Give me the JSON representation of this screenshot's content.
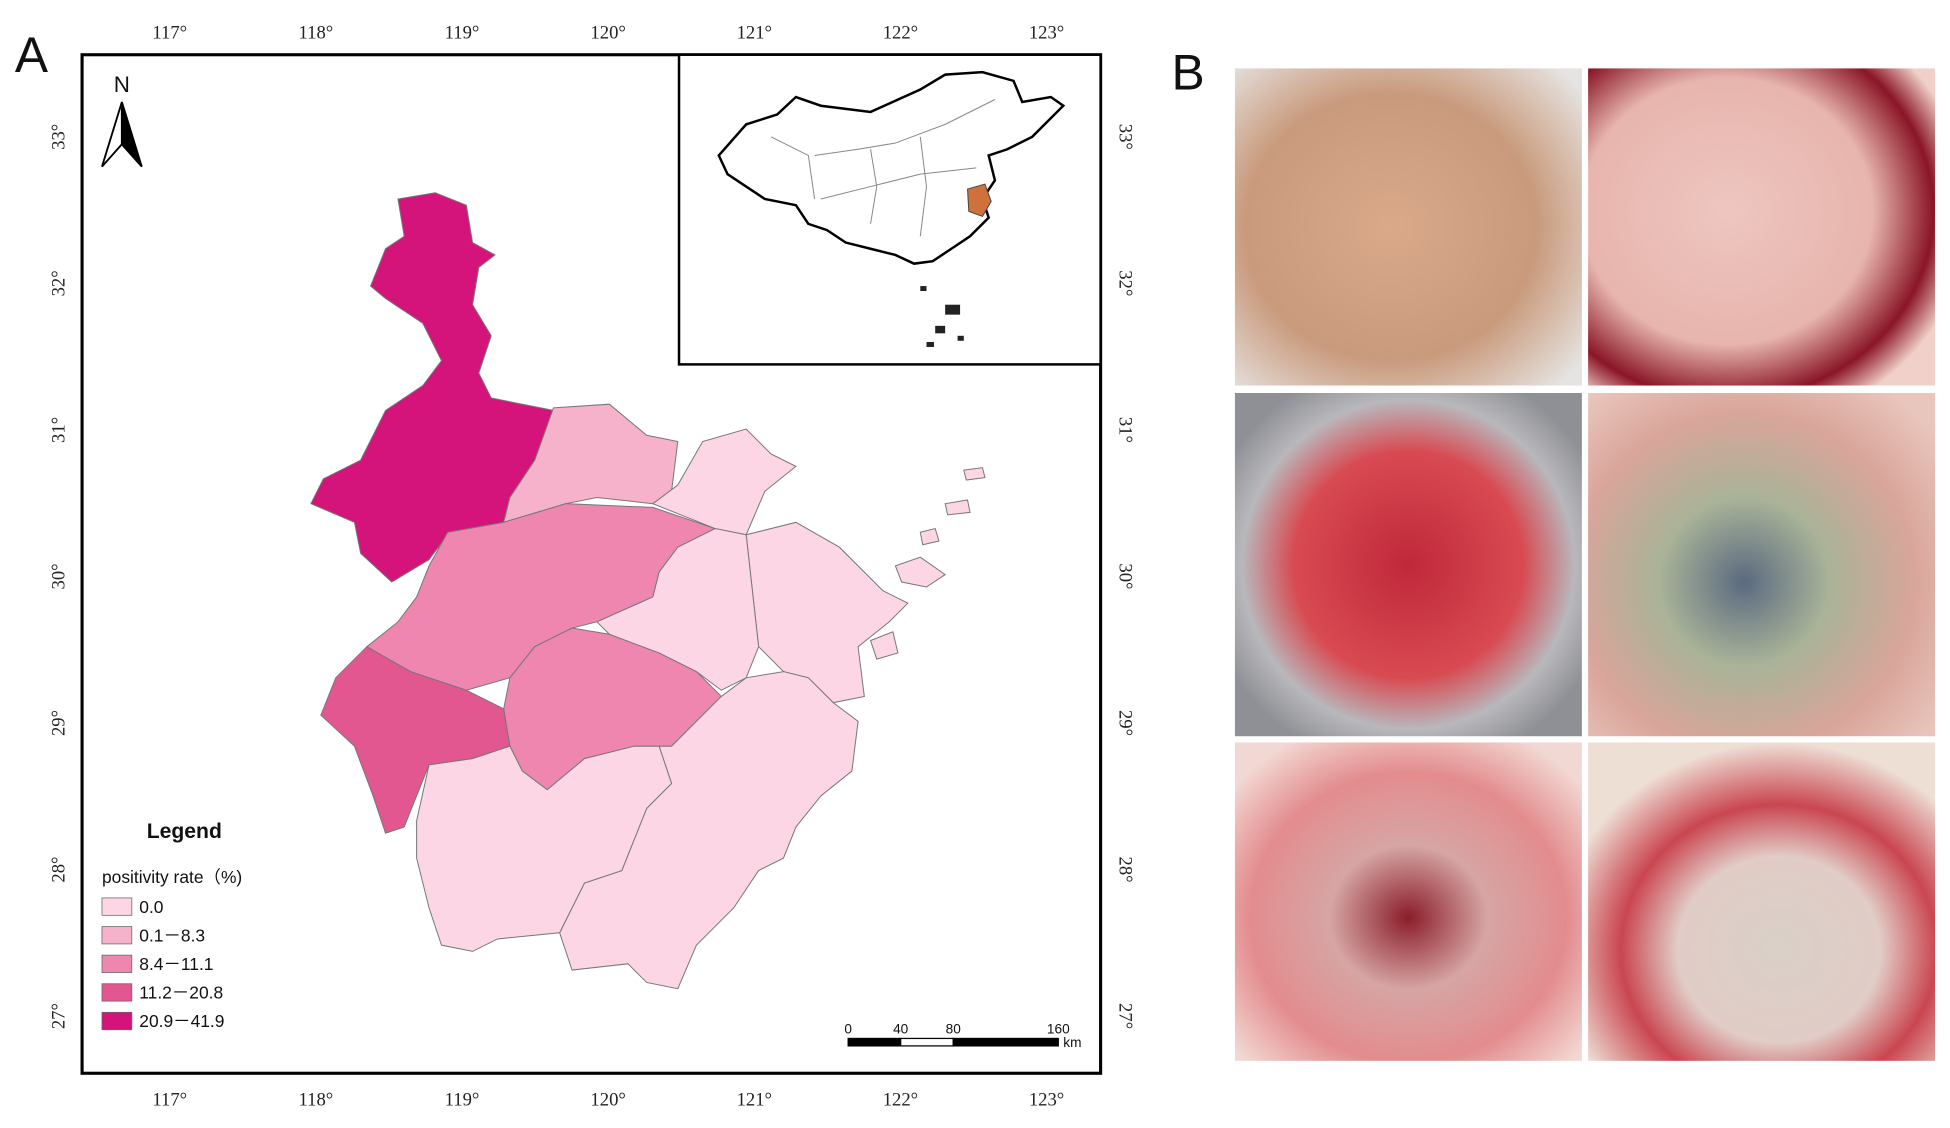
{
  "panel_labels": [
    "A",
    "B"
  ],
  "map": {
    "xlim": [
      116.4,
      123.37
    ],
    "ylim": [
      26.61,
      33.56
    ],
    "longitude_ticks": [
      {
        "value": 117,
        "label": "117°"
      },
      {
        "value": 118,
        "label": "118°"
      },
      {
        "value": 119,
        "label": "119°"
      },
      {
        "value": 120,
        "label": "120°"
      },
      {
        "value": 121,
        "label": "121°"
      },
      {
        "value": 122,
        "label": "122°"
      },
      {
        "value": 123,
        "label": "123°"
      }
    ],
    "latitude_ticks": [
      {
        "value": 27,
        "label": "27°"
      },
      {
        "value": 28,
        "label": "28°"
      },
      {
        "value": 29,
        "label": "29°"
      },
      {
        "value": 30,
        "label": "30°"
      },
      {
        "value": 31,
        "label": "31°"
      },
      {
        "value": 32,
        "label": "32°"
      },
      {
        "value": 33,
        "label": "33°"
      }
    ],
    "north_label": "N",
    "legend": {
      "title": "Legend",
      "subtitle": "positivity rate（%)",
      "items": [
        {
          "label": "0.0",
          "color": "#fcd6e4"
        },
        {
          "label": "0.1－8.3",
          "color": "#f6b1cb"
        },
        {
          "label": "8.4－11.1",
          "color": "#ee86b0"
        },
        {
          "label": "11.2－20.8",
          "color": "#e2578f"
        },
        {
          "label": "20.9－41.9",
          "color": "#d4147a"
        }
      ]
    },
    "highlight_color": "#d0703a",
    "scale_bar": {
      "ticks": [
        0,
        40,
        80,
        160
      ],
      "unit": "km"
    }
  }
}
